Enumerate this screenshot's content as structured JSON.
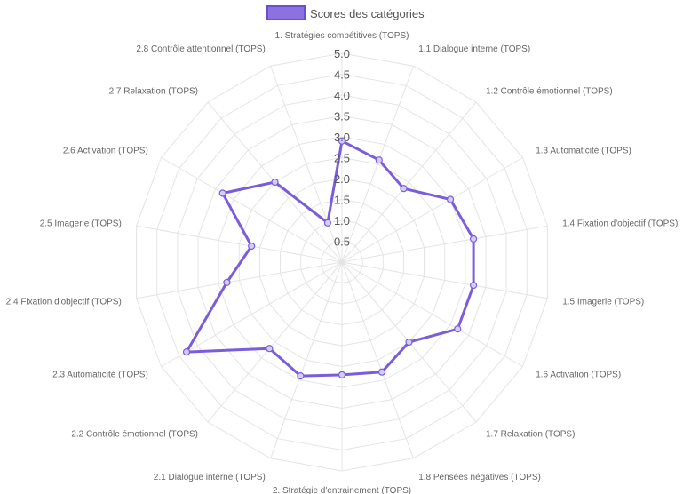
{
  "chart_data": {
    "type": "radar",
    "legend": {
      "position": "top",
      "label": "Scores des catégories"
    },
    "r_ticks": [
      "0.5",
      "1.0",
      "1.5",
      "2.0",
      "2.5",
      "3.0",
      "3.5",
      "4.0",
      "4.5",
      "5.0"
    ],
    "r_range": [
      0,
      5
    ],
    "grid": true,
    "categories": [
      "1. Stratégies compétitives (TOPS)",
      "1.1 Dialogue interne (TOPS)",
      "1.2 Contrôle émotionnel (TOPS)",
      "1.3 Automaticité (TOPS)",
      "1.4 Fixation d'objectif (TOPS)",
      "1.5 Imagerie (TOPS)",
      "1.6 Activation (TOPS)",
      "1.7 Relaxation (TOPS)",
      "1.8 Pensées négatives (TOPS)",
      "2. Stratégie d'entrainement (TOPS)",
      "2.1 Dialogue interne (TOPS)",
      "2.2 Contrôle émotionnel (TOPS)",
      "2.3 Automaticité (TOPS)",
      "2.4 Fixation d'objectif (TOPS)",
      "2.5 Imagerie (TOPS)",
      "2.6 Activation (TOPS)",
      "2.7 Relaxation (TOPS)",
      "2.8 Contrôle attentionnel (TOPS)"
    ],
    "series": [
      {
        "name": "Scores des catégories",
        "color": "#7b5cdb",
        "fill": "#8b72e0",
        "values": [
          2.9,
          2.6,
          2.3,
          3.0,
          3.2,
          3.2,
          3.2,
          2.5,
          2.8,
          2.7,
          2.9,
          2.7,
          4.3,
          2.8,
          2.2,
          3.3,
          2.5,
          1.0
        ]
      }
    ]
  }
}
